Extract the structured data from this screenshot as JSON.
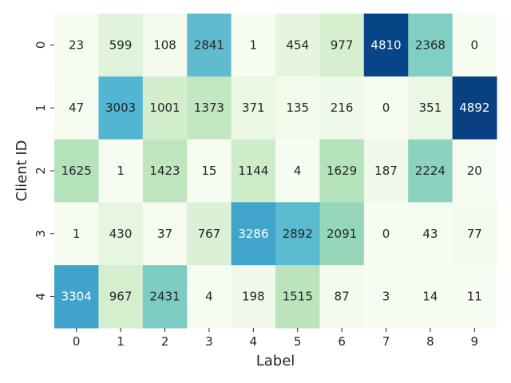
{
  "chart_data": {
    "type": "heatmap",
    "xlabel": "Label",
    "ylabel": "Client ID",
    "x_categories": [
      "0",
      "1",
      "2",
      "3",
      "4",
      "5",
      "6",
      "7",
      "8",
      "9"
    ],
    "y_categories": [
      "0",
      "1",
      "2",
      "3",
      "4"
    ],
    "values": [
      [
        23,
        599,
        108,
        2841,
        1,
        454,
        977,
        4810,
        2368,
        0
      ],
      [
        47,
        3003,
        1001,
        1373,
        371,
        135,
        216,
        0,
        351,
        4892
      ],
      [
        1625,
        1,
        1423,
        15,
        1144,
        4,
        1629,
        187,
        2224,
        20
      ],
      [
        1,
        430,
        37,
        767,
        3286,
        2892,
        2091,
        0,
        43,
        77
      ],
      [
        3304,
        967,
        2431,
        4,
        198,
        1515,
        87,
        3,
        14,
        11
      ]
    ],
    "colormap": "GnBu",
    "vmin": 0,
    "vmax": 4892,
    "colorbar": false
  }
}
